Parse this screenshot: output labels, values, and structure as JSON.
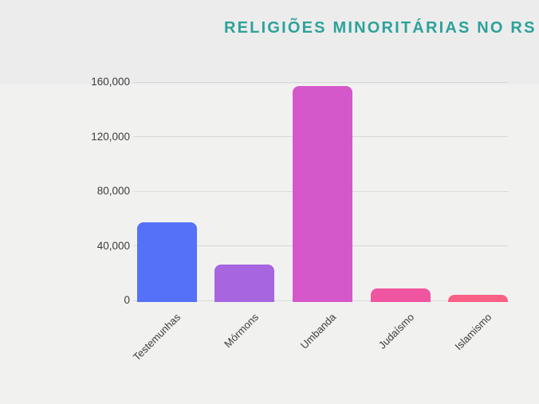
{
  "page": {
    "background": "#f1f1f0",
    "header_band": "#ececec"
  },
  "chart_data": {
    "type": "bar",
    "title": "RELIGIÕES MINORITÁRIAS NO RS",
    "title_color": "#2da29a",
    "categories": [
      "Testemunhas",
      "Mórmons",
      "Umbanda",
      "Judaísmo",
      "Islamismo"
    ],
    "values": [
      57000,
      26000,
      157000,
      8500,
      4000
    ],
    "bar_colors": [
      "#5471f7",
      "#a765e0",
      "#d558cb",
      "#ef55a1",
      "#fa5f84"
    ],
    "xlabel": "",
    "ylabel": "",
    "ylim": [
      0,
      160000
    ],
    "yticks": [
      0,
      40000,
      80000,
      120000,
      160000
    ],
    "ytick_labels": [
      "0",
      "40,000",
      "80,000",
      "120,000",
      "160,000"
    ],
    "grid": true,
    "legend": false,
    "axis_text_color": "#3d3d3d",
    "gridline_color": "#d8d8d8"
  }
}
